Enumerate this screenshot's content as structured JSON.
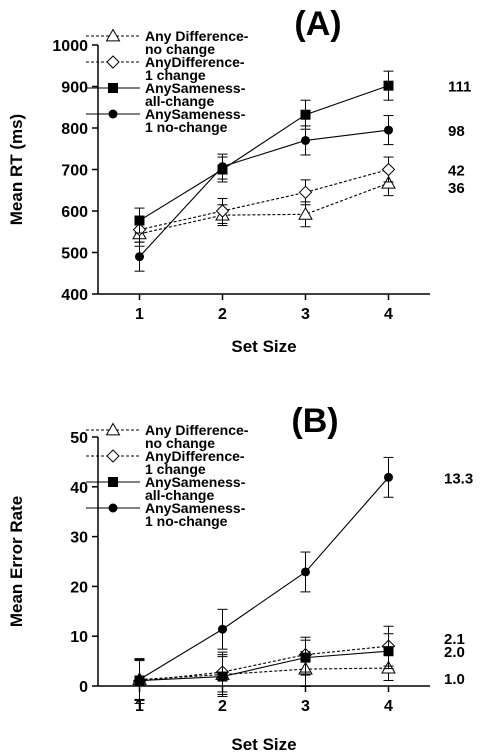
{
  "charts": [
    {
      "type": "line",
      "panel_label": "(A)",
      "xlabel": "Set Size",
      "ylabel": "Mean RT (ms)",
      "x": [
        1,
        2,
        3,
        4
      ],
      "xlim": [
        0.5,
        4.5
      ],
      "ylim": [
        400,
        1000
      ],
      "yticks": [
        400,
        500,
        600,
        700,
        800,
        900,
        1000
      ],
      "legend_position": "top-left",
      "series": [
        {
          "name_lines": [
            "Any Difference-",
            "no change"
          ],
          "marker": "triangle-open",
          "line": "dashed",
          "values": [
            545,
            590,
            592,
            667
          ],
          "errors": [
            30,
            25,
            30,
            30
          ],
          "end_label": "36"
        },
        {
          "name_lines": [
            "AnyDifference-",
            "1 change"
          ],
          "marker": "diamond-open",
          "line": "dashed",
          "values": [
            555,
            600,
            645,
            700
          ],
          "errors": [
            30,
            30,
            30,
            30
          ],
          "end_label": "42"
        },
        {
          "name_lines": [
            "AnySameness-",
            "all-change"
          ],
          "marker": "square-filled",
          "line": "solid",
          "values": [
            577,
            700,
            832,
            902
          ],
          "errors": [
            30,
            30,
            35,
            35
          ],
          "end_label": "111"
        },
        {
          "name_lines": [
            "AnySameness-",
            "1 no-change"
          ],
          "marker": "circle-filled",
          "line": "solid",
          "values": [
            490,
            707,
            770,
            795
          ],
          "errors": [
            35,
            30,
            35,
            35
          ],
          "end_label": "98"
        }
      ]
    },
    {
      "type": "line",
      "panel_label": "(B)",
      "xlabel": "Set Size",
      "ylabel": "Mean Error Rate",
      "x": [
        1,
        2,
        3,
        4
      ],
      "xlim": [
        0.5,
        4.5
      ],
      "ylim": [
        0,
        50
      ],
      "yticks": [
        0,
        10,
        20,
        30,
        40,
        50
      ],
      "legend_position": "top-left",
      "series": [
        {
          "name_lines": [
            "Any Difference-",
            "no change"
          ],
          "marker": "triangle-open",
          "line": "dashed",
          "values": [
            1.3,
            2.3,
            3.4,
            3.6
          ],
          "errors": [
            4.0,
            4.0,
            3.5,
            2.5
          ],
          "end_label": "1.0"
        },
        {
          "name_lines": [
            "AnyDifference-",
            "1 change"
          ],
          "marker": "diamond-open",
          "line": "dashed",
          "values": [
            1.0,
            2.8,
            6.3,
            8.0
          ],
          "errors": [
            4.5,
            4.0,
            3.5,
            4.0
          ],
          "end_label": "2.1"
        },
        {
          "name_lines": [
            "AnySameness-",
            "all-change"
          ],
          "marker": "square-filled",
          "line": "solid",
          "values": [
            1.1,
            1.9,
            5.7,
            7.0
          ],
          "errors": [
            4.0,
            4.0,
            3.5,
            3.5
          ],
          "end_label": "2.0"
        },
        {
          "name_lines": [
            "AnySameness-",
            "1 no-change"
          ],
          "marker": "circle-filled",
          "line": "solid",
          "values": [
            1.3,
            11.4,
            22.9,
            41.9
          ],
          "errors": [
            4.0,
            4.0,
            4.0,
            4.0
          ],
          "end_label": "13.3"
        }
      ]
    }
  ]
}
